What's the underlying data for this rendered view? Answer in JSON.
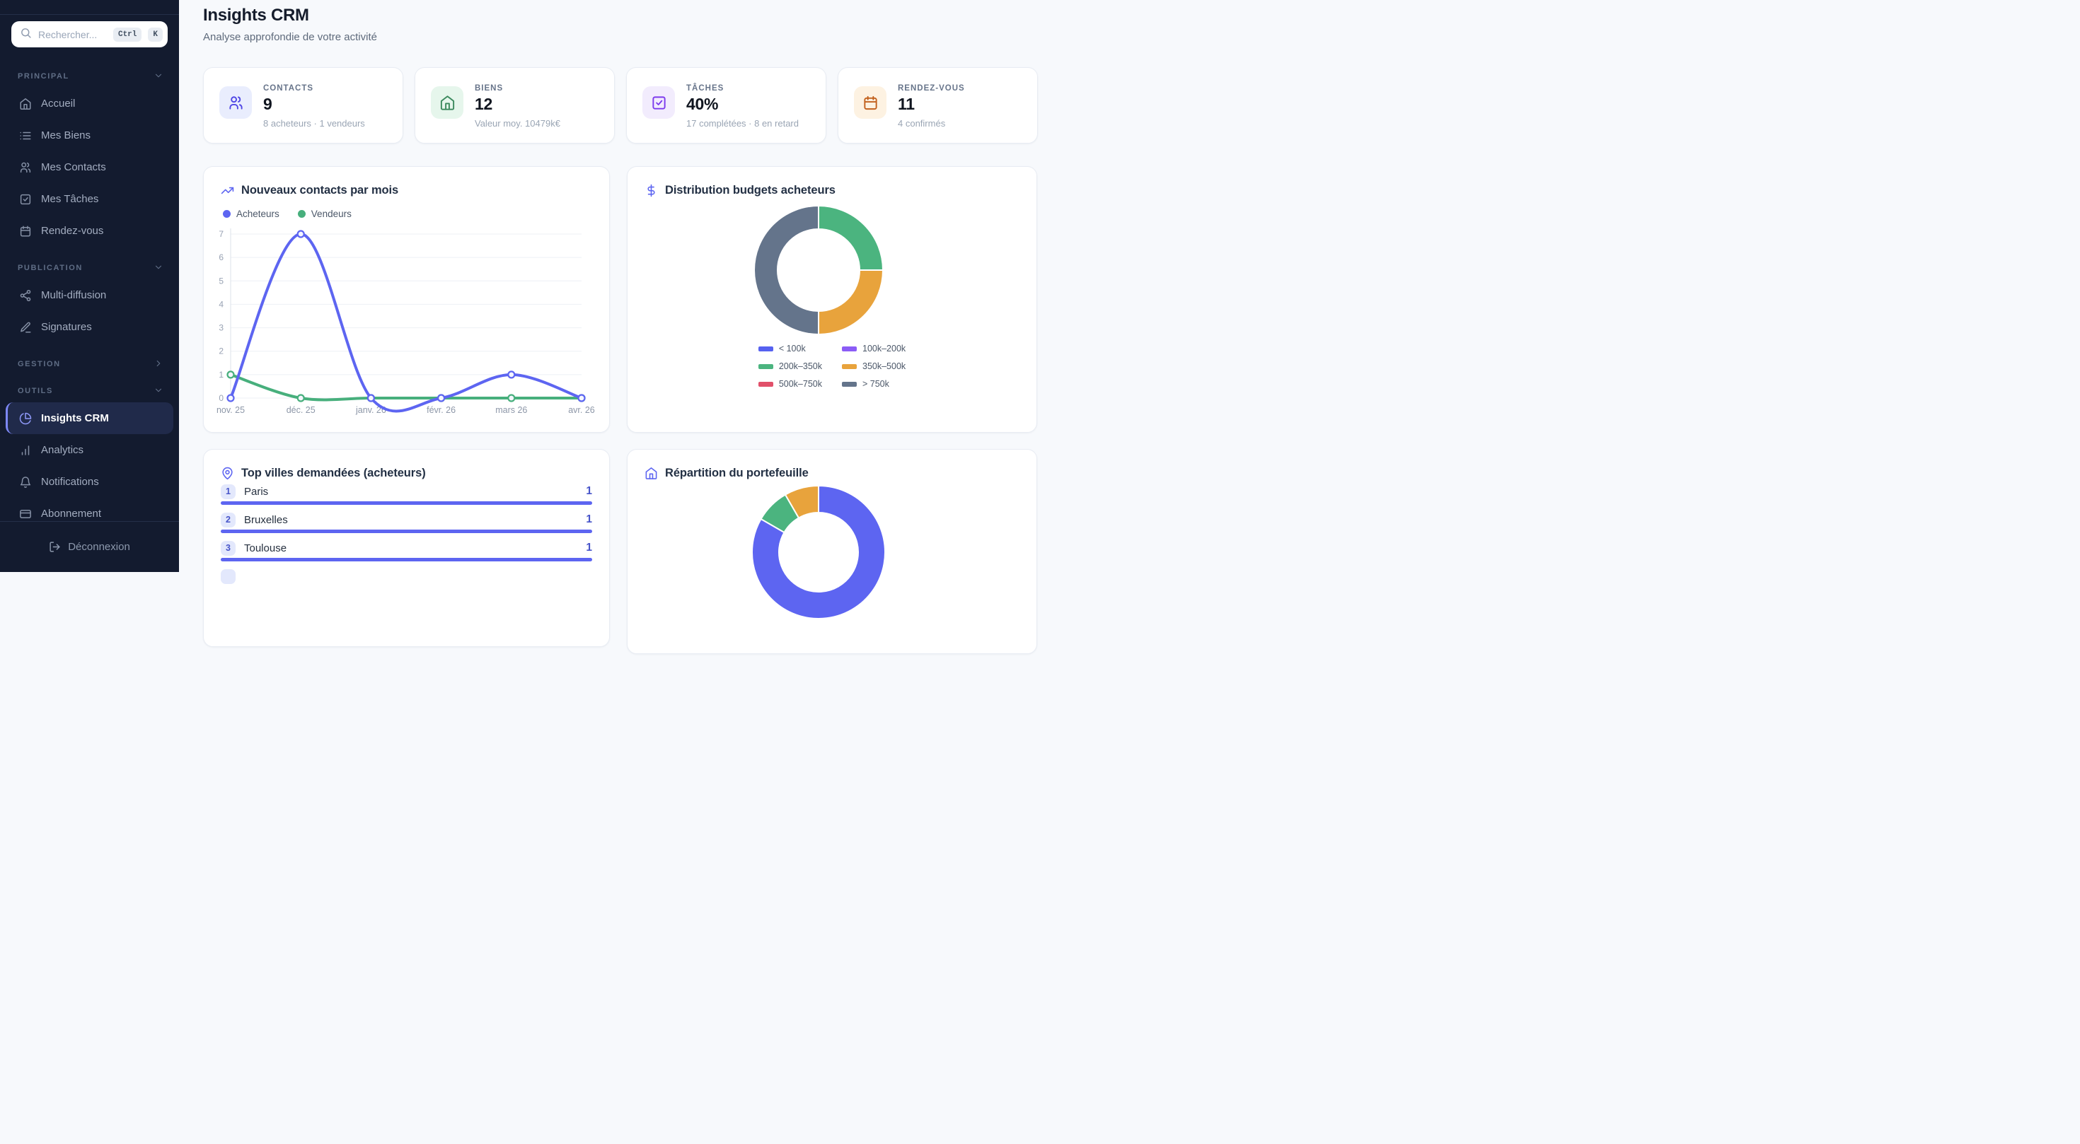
{
  "sidebar": {
    "search": {
      "placeholder": "Rechercher...",
      "keys": [
        "Ctrl",
        "K"
      ]
    },
    "sections": [
      {
        "label": "PRINCIPAL",
        "chevron": "down",
        "items": [
          {
            "label": "Accueil",
            "icon": "home"
          },
          {
            "label": "Mes Biens",
            "icon": "list"
          },
          {
            "label": "Mes Contacts",
            "icon": "users"
          },
          {
            "label": "Mes Tâches",
            "icon": "check-square"
          },
          {
            "label": "Rendez-vous",
            "icon": "calendar"
          }
        ]
      },
      {
        "label": "PUBLICATION",
        "chevron": "down",
        "items": [
          {
            "label": "Multi-diffusion",
            "icon": "share"
          },
          {
            "label": "Signatures",
            "icon": "pen"
          }
        ]
      },
      {
        "label": "GESTION",
        "chevron": "right",
        "items": []
      },
      {
        "label": "OUTILS",
        "chevron": "down",
        "items": [
          {
            "label": "Insights CRM",
            "icon": "pie-chart",
            "active": true
          },
          {
            "label": "Analytics",
            "icon": "bar-chart"
          },
          {
            "label": "Notifications",
            "icon": "bell"
          },
          {
            "label": "Abonnement",
            "icon": "credit-card"
          }
        ]
      }
    ],
    "logout_label": "Déconnexion"
  },
  "header": {
    "title": "Insights CRM",
    "subtitle": "Analyse approfondie de votre activité"
  },
  "stat_cards": [
    {
      "label": "CONTACTS",
      "value": "9",
      "subtext": "8 acheteurs · 1 vendeurs",
      "icon": "users",
      "icon_color": "#4f46e5",
      "icon_bg": "#e9edfd"
    },
    {
      "label": "BIENS",
      "value": "12",
      "subtext": "Valeur moy. 10479k€",
      "icon": "home",
      "icon_color": "#3c8a5e",
      "icon_bg": "#e6f6ec"
    },
    {
      "label": "TÂCHES",
      "value": "40%",
      "subtext": "17 complétées · 8 en retard",
      "icon": "check-square",
      "icon_color": "#7c3aed",
      "icon_bg": "#f2ecfd"
    },
    {
      "label": "RENDEZ-VOUS",
      "value": "11",
      "subtext": "4 confirmés",
      "icon": "calendar",
      "icon_color": "#c2601d",
      "icon_bg": "#fdf2e2"
    }
  ],
  "chart_data": [
    {
      "type": "line",
      "title": "Nouveaux contacts par mois",
      "icon": "trending-up",
      "x": [
        "nov. 25",
        "déc. 25",
        "janv. 26",
        "févr. 26",
        "mars 26",
        "avr. 26"
      ],
      "series": [
        {
          "name": "Acheteurs",
          "color": "#5d65f1",
          "values": [
            0,
            7,
            0,
            0,
            1,
            0
          ]
        },
        {
          "name": "Vendeurs",
          "color": "#47af7c",
          "values": [
            1,
            0,
            0,
            0,
            0,
            0
          ]
        }
      ],
      "ylim": [
        0,
        7
      ],
      "yticks": [
        0,
        1,
        2,
        3,
        4,
        5,
        6,
        7
      ],
      "grid": true,
      "legend_position": "top"
    },
    {
      "type": "pie",
      "title": "Distribution budgets acheteurs",
      "icon": "dollar-sign",
      "donut": true,
      "labels": [
        "< 100k",
        "100k–200k",
        "200k–350k",
        "350k–500k",
        "500k–750k",
        "> 750k"
      ],
      "values": [
        0,
        0,
        2,
        2,
        0,
        4
      ],
      "colors": [
        "#5661f0",
        "#8b5cf6",
        "#4bb47f",
        "#e8a33c",
        "#e1506a",
        "#64748b"
      ],
      "legend_position": "bottom"
    },
    {
      "type": "bar",
      "title": "Top villes demandées (acheteurs)",
      "icon": "map-pin",
      "orientation": "horizontal",
      "ranks": [
        1,
        2,
        3
      ],
      "categories": [
        "Paris",
        "Bruxelles",
        "Toulouse"
      ],
      "values": [
        1,
        1,
        1
      ],
      "max": 1,
      "bar_color": "#5d65f1",
      "partial_fourth_row": true
    },
    {
      "type": "pie",
      "title": "Répartition du portefeuille",
      "icon": "home",
      "donut": true,
      "labels": [],
      "values": [
        10,
        1,
        1
      ],
      "colors": [
        "#5d65f1",
        "#4bb47f",
        "#e8a33c"
      ]
    }
  ]
}
